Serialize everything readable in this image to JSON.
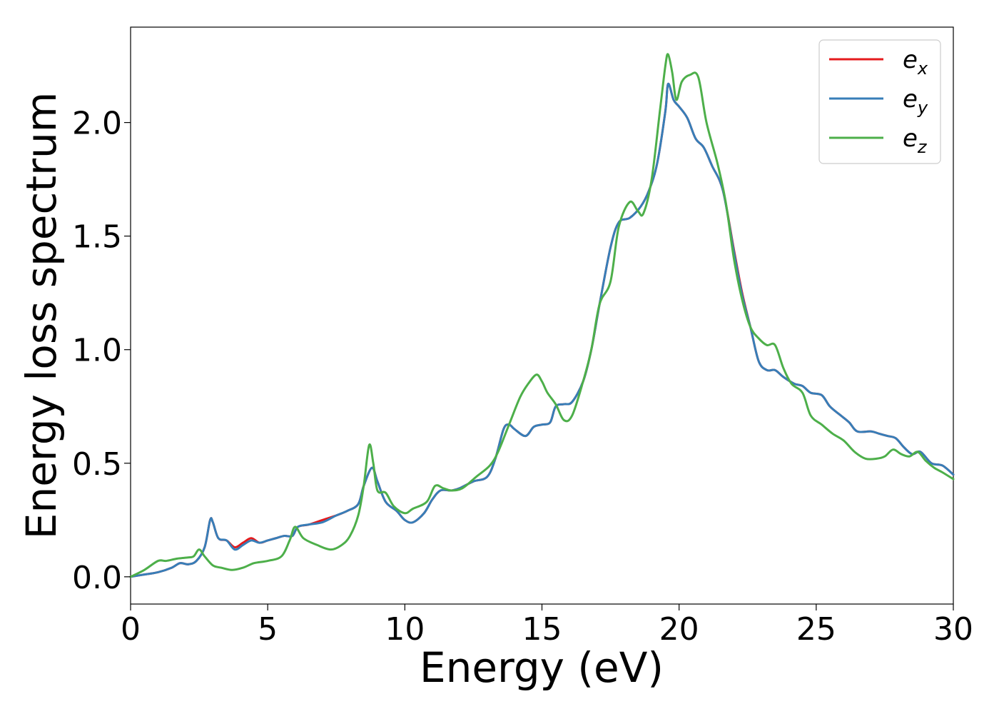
{
  "chart_data": {
    "type": "line",
    "title": "",
    "xlabel": "Energy (eV)",
    "ylabel": "Energy loss spectrum",
    "xlim": [
      0,
      30
    ],
    "ylim": [
      -0.12,
      2.42
    ],
    "xticks": [
      0,
      5,
      10,
      15,
      20,
      25,
      30
    ],
    "xtick_labels": [
      "0",
      "5",
      "10",
      "15",
      "20",
      "25",
      "30"
    ],
    "yticks": [
      0.0,
      0.5,
      1.0,
      1.5,
      2.0
    ],
    "ytick_labels": [
      "0.0",
      "0.5",
      "1.0",
      "1.5",
      "2.0"
    ],
    "grid": false,
    "legend_position": "top-right",
    "series": [
      {
        "name": "e_x",
        "label_main": "e",
        "label_sub": "x",
        "color": "#e41a1c",
        "points": [
          [
            0,
            0
          ],
          [
            0.5,
            0.01
          ],
          [
            1,
            0.02
          ],
          [
            1.5,
            0.04
          ],
          [
            1.8,
            0.06
          ],
          [
            2.1,
            0.055
          ],
          [
            2.4,
            0.07
          ],
          [
            2.7,
            0.13
          ],
          [
            2.9,
            0.25
          ],
          [
            3.0,
            0.24
          ],
          [
            3.2,
            0.17
          ],
          [
            3.5,
            0.16
          ],
          [
            3.8,
            0.13
          ],
          [
            4.1,
            0.15
          ],
          [
            4.4,
            0.17
          ],
          [
            4.7,
            0.15
          ],
          [
            5.0,
            0.16
          ],
          [
            5.3,
            0.17
          ],
          [
            5.6,
            0.18
          ],
          [
            5.9,
            0.18
          ],
          [
            6.1,
            0.22
          ],
          [
            6.5,
            0.23
          ],
          [
            7.0,
            0.25
          ],
          [
            7.5,
            0.27
          ],
          [
            7.9,
            0.29
          ],
          [
            8.3,
            0.32
          ],
          [
            8.5,
            0.4
          ],
          [
            8.8,
            0.48
          ],
          [
            9.0,
            0.42
          ],
          [
            9.3,
            0.33
          ],
          [
            9.7,
            0.29
          ],
          [
            10.0,
            0.25
          ],
          [
            10.3,
            0.24
          ],
          [
            10.7,
            0.28
          ],
          [
            11.0,
            0.34
          ],
          [
            11.3,
            0.38
          ],
          [
            11.7,
            0.38
          ],
          [
            12.0,
            0.39
          ],
          [
            12.5,
            0.42
          ],
          [
            13.0,
            0.44
          ],
          [
            13.3,
            0.52
          ],
          [
            13.6,
            0.65
          ],
          [
            13.8,
            0.67
          ],
          [
            14.0,
            0.65
          ],
          [
            14.4,
            0.62
          ],
          [
            14.7,
            0.66
          ],
          [
            15.0,
            0.67
          ],
          [
            15.3,
            0.68
          ],
          [
            15.5,
            0.75
          ],
          [
            15.8,
            0.76
          ],
          [
            16.1,
            0.77
          ],
          [
            16.5,
            0.86
          ],
          [
            16.8,
            1.0
          ],
          [
            17.1,
            1.2
          ],
          [
            17.5,
            1.45
          ],
          [
            17.8,
            1.56
          ],
          [
            18.2,
            1.58
          ],
          [
            18.6,
            1.63
          ],
          [
            18.9,
            1.7
          ],
          [
            19.2,
            1.82
          ],
          [
            19.5,
            2.05
          ],
          [
            19.6,
            2.17
          ],
          [
            19.8,
            2.1
          ],
          [
            20.0,
            2.07
          ],
          [
            20.3,
            2.02
          ],
          [
            20.6,
            1.93
          ],
          [
            20.9,
            1.89
          ],
          [
            21.2,
            1.81
          ],
          [
            21.6,
            1.7
          ],
          [
            22.0,
            1.44
          ],
          [
            22.3,
            1.25
          ],
          [
            22.6,
            1.1
          ],
          [
            22.9,
            0.95
          ],
          [
            23.2,
            0.91
          ],
          [
            23.5,
            0.91
          ],
          [
            23.8,
            0.88
          ],
          [
            24.2,
            0.85
          ],
          [
            24.5,
            0.84
          ],
          [
            24.8,
            0.81
          ],
          [
            25.2,
            0.8
          ],
          [
            25.5,
            0.75
          ],
          [
            25.9,
            0.71
          ],
          [
            26.2,
            0.68
          ],
          [
            26.5,
            0.64
          ],
          [
            27.0,
            0.64
          ],
          [
            27.3,
            0.63
          ],
          [
            27.6,
            0.62
          ],
          [
            27.9,
            0.61
          ],
          [
            28.2,
            0.57
          ],
          [
            28.5,
            0.54
          ],
          [
            28.8,
            0.55
          ],
          [
            29.2,
            0.5
          ],
          [
            29.6,
            0.49
          ],
          [
            30.0,
            0.45
          ]
        ]
      },
      {
        "name": "e_y",
        "label_main": "e",
        "label_sub": "y",
        "color": "#377eb8",
        "points": [
          [
            0,
            0
          ],
          [
            0.5,
            0.01
          ],
          [
            1,
            0.02
          ],
          [
            1.5,
            0.04
          ],
          [
            1.8,
            0.06
          ],
          [
            2.1,
            0.055
          ],
          [
            2.4,
            0.07
          ],
          [
            2.7,
            0.13
          ],
          [
            2.9,
            0.25
          ],
          [
            3.0,
            0.24
          ],
          [
            3.2,
            0.17
          ],
          [
            3.5,
            0.16
          ],
          [
            3.8,
            0.12
          ],
          [
            4.1,
            0.14
          ],
          [
            4.4,
            0.16
          ],
          [
            4.7,
            0.15
          ],
          [
            5.0,
            0.16
          ],
          [
            5.3,
            0.17
          ],
          [
            5.6,
            0.18
          ],
          [
            5.9,
            0.18
          ],
          [
            6.1,
            0.22
          ],
          [
            6.5,
            0.23
          ],
          [
            7.0,
            0.24
          ],
          [
            7.5,
            0.27
          ],
          [
            7.9,
            0.29
          ],
          [
            8.3,
            0.32
          ],
          [
            8.5,
            0.4
          ],
          [
            8.8,
            0.48
          ],
          [
            9.0,
            0.42
          ],
          [
            9.3,
            0.33
          ],
          [
            9.7,
            0.29
          ],
          [
            10.0,
            0.25
          ],
          [
            10.3,
            0.24
          ],
          [
            10.7,
            0.28
          ],
          [
            11.0,
            0.34
          ],
          [
            11.3,
            0.38
          ],
          [
            11.7,
            0.38
          ],
          [
            12.0,
            0.39
          ],
          [
            12.5,
            0.42
          ],
          [
            13.0,
            0.44
          ],
          [
            13.3,
            0.52
          ],
          [
            13.6,
            0.65
          ],
          [
            13.8,
            0.67
          ],
          [
            14.0,
            0.65
          ],
          [
            14.4,
            0.62
          ],
          [
            14.7,
            0.66
          ],
          [
            15.0,
            0.67
          ],
          [
            15.3,
            0.68
          ],
          [
            15.5,
            0.75
          ],
          [
            15.8,
            0.76
          ],
          [
            16.1,
            0.77
          ],
          [
            16.5,
            0.86
          ],
          [
            16.8,
            1.0
          ],
          [
            17.1,
            1.2
          ],
          [
            17.5,
            1.45
          ],
          [
            17.8,
            1.56
          ],
          [
            18.2,
            1.58
          ],
          [
            18.6,
            1.63
          ],
          [
            18.9,
            1.7
          ],
          [
            19.2,
            1.82
          ],
          [
            19.5,
            2.05
          ],
          [
            19.6,
            2.17
          ],
          [
            19.8,
            2.1
          ],
          [
            20.0,
            2.07
          ],
          [
            20.3,
            2.02
          ],
          [
            20.6,
            1.93
          ],
          [
            20.9,
            1.89
          ],
          [
            21.2,
            1.81
          ],
          [
            21.6,
            1.7
          ],
          [
            22.0,
            1.43
          ],
          [
            22.3,
            1.24
          ],
          [
            22.6,
            1.1
          ],
          [
            22.9,
            0.95
          ],
          [
            23.2,
            0.91
          ],
          [
            23.5,
            0.91
          ],
          [
            23.8,
            0.88
          ],
          [
            24.2,
            0.85
          ],
          [
            24.5,
            0.84
          ],
          [
            24.8,
            0.81
          ],
          [
            25.2,
            0.8
          ],
          [
            25.5,
            0.75
          ],
          [
            25.9,
            0.71
          ],
          [
            26.2,
            0.68
          ],
          [
            26.5,
            0.64
          ],
          [
            27.0,
            0.64
          ],
          [
            27.3,
            0.63
          ],
          [
            27.6,
            0.62
          ],
          [
            27.9,
            0.61
          ],
          [
            28.2,
            0.57
          ],
          [
            28.5,
            0.54
          ],
          [
            28.8,
            0.55
          ],
          [
            29.2,
            0.5
          ],
          [
            29.6,
            0.49
          ],
          [
            30.0,
            0.45
          ]
        ]
      },
      {
        "name": "e_z",
        "label_main": "e",
        "label_sub": "z",
        "color": "#4daf4a",
        "points": [
          [
            0,
            0
          ],
          [
            0.5,
            0.03
          ],
          [
            1.0,
            0.07
          ],
          [
            1.3,
            0.07
          ],
          [
            1.7,
            0.08
          ],
          [
            2.1,
            0.085
          ],
          [
            2.3,
            0.09
          ],
          [
            2.5,
            0.12
          ],
          [
            2.7,
            0.09
          ],
          [
            3.0,
            0.05
          ],
          [
            3.3,
            0.04
          ],
          [
            3.7,
            0.03
          ],
          [
            4.1,
            0.04
          ],
          [
            4.5,
            0.06
          ],
          [
            5.0,
            0.07
          ],
          [
            5.5,
            0.09
          ],
          [
            5.8,
            0.16
          ],
          [
            6.0,
            0.22
          ],
          [
            6.3,
            0.17
          ],
          [
            6.8,
            0.14
          ],
          [
            7.3,
            0.12
          ],
          [
            7.7,
            0.14
          ],
          [
            8.0,
            0.18
          ],
          [
            8.3,
            0.27
          ],
          [
            8.5,
            0.4
          ],
          [
            8.7,
            0.58
          ],
          [
            8.85,
            0.5
          ],
          [
            9.0,
            0.38
          ],
          [
            9.3,
            0.37
          ],
          [
            9.6,
            0.31
          ],
          [
            10.0,
            0.28
          ],
          [
            10.3,
            0.3
          ],
          [
            10.8,
            0.33
          ],
          [
            11.1,
            0.4
          ],
          [
            11.4,
            0.39
          ],
          [
            11.7,
            0.38
          ],
          [
            12.1,
            0.39
          ],
          [
            12.6,
            0.44
          ],
          [
            13.1,
            0.49
          ],
          [
            13.4,
            0.55
          ],
          [
            13.8,
            0.67
          ],
          [
            14.2,
            0.79
          ],
          [
            14.5,
            0.85
          ],
          [
            14.8,
            0.89
          ],
          [
            15.0,
            0.86
          ],
          [
            15.2,
            0.81
          ],
          [
            15.5,
            0.76
          ],
          [
            15.8,
            0.69
          ],
          [
            16.1,
            0.71
          ],
          [
            16.5,
            0.86
          ],
          [
            16.8,
            1.0
          ],
          [
            17.1,
            1.2
          ],
          [
            17.5,
            1.3
          ],
          [
            17.8,
            1.54
          ],
          [
            18.2,
            1.65
          ],
          [
            18.5,
            1.61
          ],
          [
            18.7,
            1.6
          ],
          [
            19.0,
            1.75
          ],
          [
            19.3,
            2.05
          ],
          [
            19.5,
            2.25
          ],
          [
            19.6,
            2.3
          ],
          [
            19.75,
            2.22
          ],
          [
            19.9,
            2.1
          ],
          [
            20.1,
            2.18
          ],
          [
            20.4,
            2.21
          ],
          [
            20.7,
            2.2
          ],
          [
            21.0,
            2.0
          ],
          [
            21.4,
            1.82
          ],
          [
            21.7,
            1.65
          ],
          [
            22.0,
            1.4
          ],
          [
            22.3,
            1.22
          ],
          [
            22.6,
            1.1
          ],
          [
            22.9,
            1.05
          ],
          [
            23.2,
            1.02
          ],
          [
            23.5,
            1.02
          ],
          [
            23.8,
            0.92
          ],
          [
            24.1,
            0.85
          ],
          [
            24.5,
            0.81
          ],
          [
            24.8,
            0.71
          ],
          [
            25.2,
            0.67
          ],
          [
            25.6,
            0.63
          ],
          [
            26.0,
            0.6
          ],
          [
            26.4,
            0.55
          ],
          [
            26.8,
            0.52
          ],
          [
            27.2,
            0.52
          ],
          [
            27.5,
            0.53
          ],
          [
            27.8,
            0.56
          ],
          [
            28.1,
            0.54
          ],
          [
            28.4,
            0.53
          ],
          [
            28.7,
            0.55
          ],
          [
            29.0,
            0.51
          ],
          [
            29.3,
            0.48
          ],
          [
            29.6,
            0.46
          ],
          [
            30.0,
            0.43
          ]
        ]
      }
    ]
  }
}
